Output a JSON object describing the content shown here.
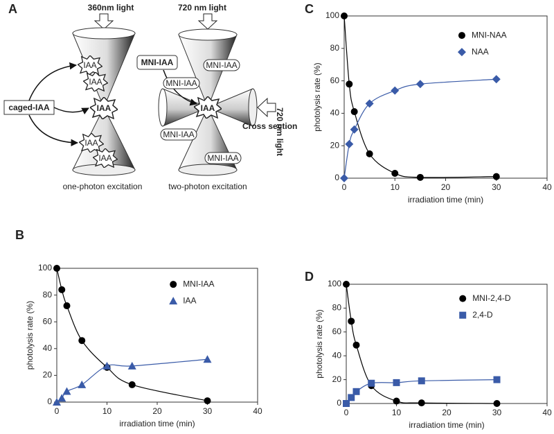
{
  "diagram": {
    "panel_label": "A",
    "one_photon": {
      "light": "360nm light",
      "caged": "caged-IAA",
      "molecules": [
        "IAA",
        "IAA",
        "IAA",
        "IAA",
        "IAA"
      ],
      "caption": "one-photon excitation"
    },
    "two_photon": {
      "light_top": "720 nm light",
      "light_side": "720 nm light",
      "caged": "MNI-IAA",
      "molecules": [
        "MNI-IAA",
        "MNI-IAA",
        "MNI-IAA",
        "MNI-IAA"
      ],
      "center": "IAA",
      "cross_section": "Cross section",
      "caption": "two-photon excitation"
    }
  },
  "chart_data": [
    {
      "panel_label": "B",
      "type": "line",
      "xlabel": "irradiation time (min)",
      "ylabel": "photolysis rate (%)",
      "x": [
        0,
        1,
        2,
        5,
        10,
        15,
        30
      ],
      "series": [
        {
          "name": "MNI-IAA",
          "color": "#000000",
          "marker": "circle",
          "values": [
            100,
            84,
            72,
            46,
            26,
            13,
            1
          ]
        },
        {
          "name": "IAA",
          "color": "#3a5ba8",
          "marker": "triangle",
          "values": [
            0,
            3,
            8,
            13,
            27,
            27,
            32
          ]
        }
      ],
      "xlim": [
        0,
        40
      ],
      "ylim": [
        0,
        100
      ],
      "xticks": [
        0,
        10,
        20,
        30,
        40
      ],
      "yticks": [
        0,
        20,
        40,
        60,
        80,
        100
      ]
    },
    {
      "panel_label": "C",
      "type": "line",
      "xlabel": "irradiation time (min)",
      "ylabel": "photolysis rate (%)",
      "x": [
        0,
        1,
        2,
        5,
        10,
        15,
        30
      ],
      "series": [
        {
          "name": "MNI-NAA",
          "color": "#000000",
          "marker": "circle",
          "values": [
            100,
            58,
            41,
            15,
            3,
            0.5,
            1
          ]
        },
        {
          "name": "NAA",
          "color": "#3a5ba8",
          "marker": "diamond",
          "values": [
            0,
            21,
            30,
            46,
            54,
            58,
            61
          ]
        }
      ],
      "xlim": [
        0,
        40
      ],
      "ylim": [
        0,
        100
      ],
      "xticks": [
        0,
        10,
        20,
        30,
        40
      ],
      "yticks": [
        0,
        20,
        40,
        60,
        80,
        100
      ]
    },
    {
      "panel_label": "D",
      "type": "line",
      "xlabel": "irradiation time (min)",
      "ylabel": "photolysis rate (%)",
      "x": [
        0,
        1,
        2,
        5,
        10,
        15,
        30
      ],
      "series": [
        {
          "name": "MNI-2,4-D",
          "color": "#000000",
          "marker": "circle",
          "values": [
            100,
            69,
            49,
            15,
            2,
            0.5,
            0
          ]
        },
        {
          "name": "2,4-D",
          "color": "#3a5ba8",
          "marker": "square",
          "values": [
            0,
            5,
            10,
            17,
            17.5,
            19,
            20
          ]
        }
      ],
      "xlim": [
        0,
        40
      ],
      "ylim": [
        0,
        100
      ],
      "xticks": [
        0,
        10,
        20,
        30,
        40
      ],
      "yticks": [
        0,
        20,
        40,
        60,
        80,
        100
      ]
    }
  ]
}
